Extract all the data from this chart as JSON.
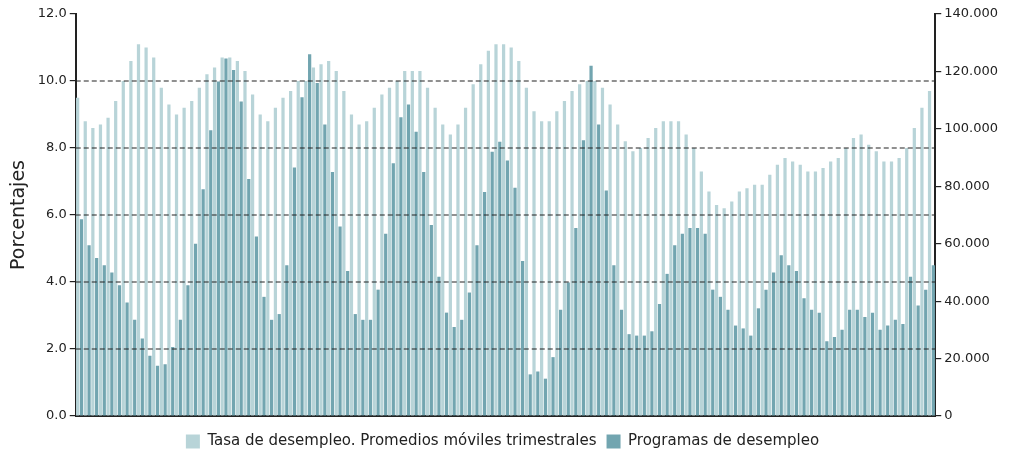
{
  "chart_data": {
    "type": "bar",
    "ylabel": "Porcentajes",
    "categories": [
      null,
      null,
      null,
      null,
      null,
      null,
      null,
      null,
      null,
      null,
      null,
      null,
      null,
      null,
      null,
      null,
      null,
      null,
      null,
      null,
      null,
      null,
      null,
      null,
      null,
      null,
      null,
      null,
      null,
      null,
      null,
      null,
      null,
      null,
      null,
      null,
      null,
      null,
      null,
      null,
      null,
      null,
      null,
      null,
      null,
      null,
      null,
      null,
      null,
      null,
      null,
      null,
      null,
      null,
      null,
      null,
      null,
      null,
      null,
      null,
      null,
      null,
      null,
      null,
      null,
      null,
      null,
      null,
      null,
      null,
      null,
      null,
      null,
      null,
      null,
      null,
      null,
      null,
      null,
      null,
      null,
      null,
      null,
      null,
      null,
      null,
      null,
      null,
      null,
      null,
      null,
      null,
      null,
      null,
      null,
      null,
      null,
      null,
      null,
      null,
      null,
      null,
      null,
      null,
      null,
      null,
      null,
      null,
      null,
      null,
      null,
      null,
      null
    ],
    "series": [
      {
        "name": "Tasa de desempleo. Promedios móviles trimestrales",
        "color": "#b8d4d8",
        "values": [
          9.5,
          8.8,
          8.6,
          8.7,
          8.9,
          9.4,
          10.0,
          10.6,
          11.1,
          11.0,
          10.7,
          9.8,
          9.3,
          9.0,
          9.2,
          9.4,
          9.8,
          10.2,
          10.4,
          10.7,
          10.7,
          10.6,
          10.3,
          9.6,
          9.0,
          8.8,
          9.2,
          9.5,
          9.7,
          10.0,
          10.0,
          10.4,
          10.5,
          10.6,
          10.3,
          9.7,
          9.0,
          8.7,
          8.8,
          9.2,
          9.6,
          9.8,
          10.0,
          10.3,
          10.3,
          10.3,
          9.8,
          9.2,
          8.7,
          8.4,
          8.7,
          9.2,
          9.9,
          10.5,
          10.9,
          11.1,
          11.1,
          11.0,
          10.6,
          9.8,
          9.1,
          8.8,
          8.8,
          9.1,
          9.4,
          9.7,
          9.9,
          10.0,
          10.0,
          9.8,
          9.3,
          8.7,
          8.2,
          7.9,
          8.0,
          8.3,
          8.6,
          8.8,
          8.8,
          8.8,
          8.4,
          8.0,
          7.3,
          6.7,
          6.3,
          6.2,
          6.4,
          6.7,
          6.8,
          6.9,
          6.9,
          7.2,
          7.5,
          7.7,
          7.6,
          7.5,
          7.3,
          7.3,
          7.4,
          7.6,
          7.7,
          8.0,
          8.3,
          8.4,
          8.1,
          7.9,
          7.6,
          7.6,
          7.7,
          8.0,
          8.6,
          9.2,
          9.7
        ]
      },
      {
        "name": "Programas de desempleo",
        "color": "#72a5b0",
        "axis": "y2",
        "values": [
          68.5,
          59.5,
          55.0,
          52.5,
          50.0,
          45.5,
          39.5,
          33.5,
          27.0,
          21.0,
          17.5,
          18.0,
          24.0,
          33.5,
          45.5,
          60.0,
          79.0,
          99.5,
          116.5,
          124.5,
          120.5,
          109.5,
          82.5,
          62.5,
          41.5,
          33.5,
          35.5,
          52.5,
          86.5,
          111.0,
          126.0,
          116.0,
          101.5,
          85.0,
          66.0,
          50.5,
          35.5,
          33.5,
          33.5,
          44.0,
          63.5,
          88.0,
          104.0,
          108.5,
          99.0,
          85.0,
          66.5,
          48.5,
          36.0,
          31.0,
          33.5,
          43.0,
          59.5,
          78.0,
          92.0,
          95.5,
          89.0,
          79.5,
          54.0,
          14.5,
          15.5,
          13.0,
          20.5,
          37.0,
          46.5,
          65.5,
          96.0,
          122.0,
          101.5,
          78.5,
          52.5,
          37.0,
          28.5,
          28.0,
          28.0,
          29.5,
          39.0,
          49.5,
          59.5,
          63.5,
          65.5,
          65.5,
          63.5,
          44.0,
          41.5,
          37.0,
          31.5,
          30.5,
          28.0,
          37.5,
          44.0,
          50.0,
          56.0,
          52.5,
          50.5,
          41.0,
          37.0,
          36.0,
          26.0,
          27.5,
          30.0,
          37.0,
          37.0,
          34.5,
          36.0,
          30.0,
          31.5,
          33.5,
          32.0,
          48.5,
          38.5,
          44.0,
          52.5
        ]
      }
    ],
    "ylim": [
      0,
      12
    ],
    "yticks": [
      {
        "value": 0,
        "label": "0.0"
      },
      {
        "value": 2,
        "label": "2.0"
      },
      {
        "value": 4,
        "label": "4.0"
      },
      {
        "value": 6,
        "label": "6.0"
      },
      {
        "value": 8,
        "label": "8.0"
      },
      {
        "value": 10,
        "label": "10.0"
      },
      {
        "value": 12,
        "label": "12.0"
      }
    ],
    "y2lim": [
      0,
      140
    ],
    "y2ticks": [
      0,
      {
        "value": 20,
        "label": "20.000"
      },
      {
        "value": 40,
        "label": "40.000"
      },
      {
        "value": 60,
        "label": "60.000"
      },
      {
        "value": 80,
        "label": "80.000"
      },
      {
        "value": 100,
        "label": "100.000"
      },
      {
        "value": 120,
        "label": "120.000"
      },
      {
        "value": 140,
        "label": "140.000"
      }
    ],
    "grid": "y",
    "line_style": "dashed",
    "legend": "bottom"
  }
}
